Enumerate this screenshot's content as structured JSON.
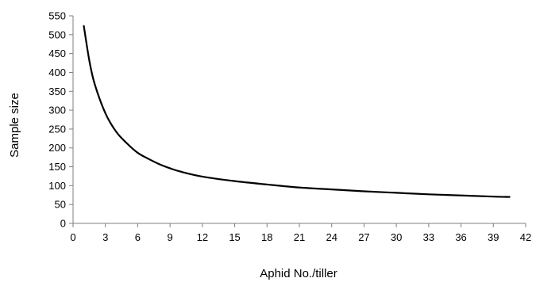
{
  "chart_data": {
    "type": "line",
    "title": "",
    "xlabel": "Aphid No./tiller",
    "ylabel": "Sample size",
    "xlim": [
      0,
      42
    ],
    "ylim": [
      0,
      550
    ],
    "x_ticks": [
      "0",
      "3",
      "6",
      "9",
      "12",
      "15",
      "18",
      "21",
      "24",
      "27",
      "30",
      "33",
      "36",
      "39",
      "42"
    ],
    "y_ticks": [
      "0",
      "50",
      "100",
      "150",
      "200",
      "250",
      "300",
      "350",
      "400",
      "450",
      "500",
      "550"
    ],
    "grid": false,
    "legend": "none",
    "series": [
      {
        "color": "#000000",
        "x": [
          1,
          1.5,
          2,
          3,
          4,
          5,
          6,
          7,
          8,
          9,
          10,
          12,
          15,
          18,
          21,
          24,
          27,
          30,
          33,
          36,
          39,
          40.5
        ],
        "y": [
          523,
          433,
          370,
          292,
          243,
          212,
          187,
          171,
          157,
          146,
          137,
          124,
          112,
          103,
          95,
          90,
          85,
          81,
          77,
          74,
          71,
          70
        ]
      }
    ]
  }
}
